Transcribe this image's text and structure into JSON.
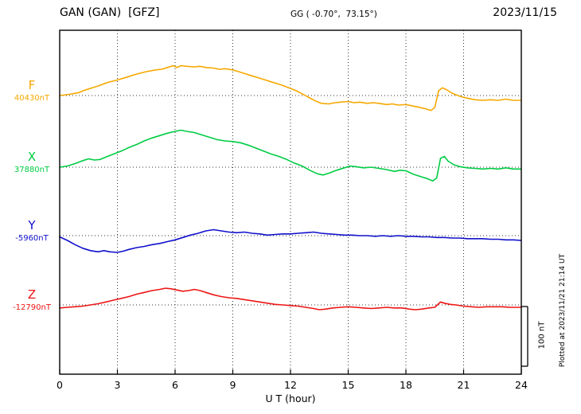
{
  "header": {
    "title": "GAN (GAN)  [GFZ]",
    "coords": "GG ( -0.70°,  73.15°)",
    "date": "2023/11/15"
  },
  "footer_note": "Plotted at 2023/11/21 21:14 UT",
  "scale_bar": {
    "label": "100 nT",
    "value_nT": 100
  },
  "xaxis": {
    "label": "U T (hour)",
    "min": 0,
    "max": 24,
    "ticks": [
      0,
      3,
      6,
      9,
      12,
      15,
      18,
      21,
      24
    ]
  },
  "chart_data": {
    "type": "line",
    "title": "GAN (GAN) [GFZ] magnetogram 2023/11/15",
    "xlabel": "U T (hour)",
    "x_range": [
      0,
      24
    ],
    "x_unit": "hour UT",
    "y_unit": "nT offset from component baseline",
    "grid": {
      "vertical_dotted_every_hours": 3,
      "horizontal_dotted_at_baselines": true
    },
    "scale_bar_nT": 100,
    "legend_position": "left-margin baseline labels",
    "series": [
      {
        "name": "F",
        "color": "#f5a800",
        "baseline_label": "40430nT",
        "baseline_nT": 40430,
        "points": [
          [
            0,
            0
          ],
          [
            0.5,
            2
          ],
          [
            1,
            5
          ],
          [
            1.3,
            9
          ],
          [
            1.6,
            12
          ],
          [
            2,
            16
          ],
          [
            2.5,
            22
          ],
          [
            3,
            26
          ],
          [
            3.5,
            31
          ],
          [
            4,
            36
          ],
          [
            4.5,
            40
          ],
          [
            5,
            43
          ],
          [
            5.3,
            44
          ],
          [
            5.6,
            47
          ],
          [
            5.9,
            50
          ],
          [
            6.1,
            47
          ],
          [
            6.3,
            50
          ],
          [
            6.6,
            49
          ],
          [
            7,
            48
          ],
          [
            7.3,
            49
          ],
          [
            7.6,
            47
          ],
          [
            8,
            46
          ],
          [
            8.3,
            44
          ],
          [
            8.6,
            45
          ],
          [
            9,
            43
          ],
          [
            9.3,
            40
          ],
          [
            9.6,
            37
          ],
          [
            10,
            33
          ],
          [
            10.5,
            28
          ],
          [
            11,
            23
          ],
          [
            11.5,
            18
          ],
          [
            12,
            12
          ],
          [
            12.3,
            8
          ],
          [
            12.6,
            3
          ],
          [
            13,
            -4
          ],
          [
            13.3,
            -9
          ],
          [
            13.6,
            -13
          ],
          [
            14,
            -14
          ],
          [
            14.3,
            -12
          ],
          [
            14.6,
            -11
          ],
          [
            15,
            -10
          ],
          [
            15.3,
            -12
          ],
          [
            15.6,
            -11
          ],
          [
            16,
            -13
          ],
          [
            16.3,
            -12
          ],
          [
            16.6,
            -13
          ],
          [
            17,
            -15
          ],
          [
            17.3,
            -14
          ],
          [
            17.6,
            -16
          ],
          [
            18,
            -15
          ],
          [
            18.3,
            -17
          ],
          [
            18.6,
            -19
          ],
          [
            19,
            -22
          ],
          [
            19.3,
            -25
          ],
          [
            19.5,
            -20
          ],
          [
            19.7,
            8
          ],
          [
            19.9,
            13
          ],
          [
            20.1,
            10
          ],
          [
            20.4,
            4
          ],
          [
            20.7,
            0
          ],
          [
            21,
            -3
          ],
          [
            21.3,
            -5
          ],
          [
            21.6,
            -7
          ],
          [
            22,
            -8
          ],
          [
            22.4,
            -7
          ],
          [
            22.8,
            -8
          ],
          [
            23.2,
            -6
          ],
          [
            23.6,
            -8
          ],
          [
            24,
            -8
          ]
        ]
      },
      {
        "name": "X",
        "color": "#00cc44",
        "baseline_label": "37880nT",
        "baseline_nT": 37880,
        "points": [
          [
            0,
            0
          ],
          [
            0.4,
            2
          ],
          [
            0.8,
            6
          ],
          [
            1.2,
            11
          ],
          [
            1.5,
            14
          ],
          [
            1.8,
            12
          ],
          [
            2.1,
            13
          ],
          [
            2.4,
            17
          ],
          [
            2.8,
            22
          ],
          [
            3.2,
            27
          ],
          [
            3.6,
            33
          ],
          [
            4,
            38
          ],
          [
            4.4,
            44
          ],
          [
            4.8,
            49
          ],
          [
            5.2,
            53
          ],
          [
            5.6,
            57
          ],
          [
            6,
            60
          ],
          [
            6.3,
            62
          ],
          [
            6.6,
            60
          ],
          [
            7,
            58
          ],
          [
            7.4,
            54
          ],
          [
            7.8,
            50
          ],
          [
            8.2,
            46
          ],
          [
            8.6,
            44
          ],
          [
            9,
            43
          ],
          [
            9.4,
            41
          ],
          [
            9.8,
            37
          ],
          [
            10.2,
            32
          ],
          [
            10.6,
            27
          ],
          [
            11,
            22
          ],
          [
            11.4,
            18
          ],
          [
            11.8,
            13
          ],
          [
            12.2,
            7
          ],
          [
            12.6,
            2
          ],
          [
            13,
            -5
          ],
          [
            13.4,
            -11
          ],
          [
            13.7,
            -13
          ],
          [
            14,
            -10
          ],
          [
            14.4,
            -5
          ],
          [
            14.8,
            -1
          ],
          [
            15.1,
            2
          ],
          [
            15.4,
            1
          ],
          [
            15.8,
            -1
          ],
          [
            16.2,
            0
          ],
          [
            16.6,
            -2
          ],
          [
            17,
            -4
          ],
          [
            17.4,
            -7
          ],
          [
            17.7,
            -5
          ],
          [
            18,
            -6
          ],
          [
            18.4,
            -12
          ],
          [
            18.8,
            -16
          ],
          [
            19.1,
            -19
          ],
          [
            19.4,
            -23
          ],
          [
            19.6,
            -18
          ],
          [
            19.8,
            15
          ],
          [
            20,
            18
          ],
          [
            20.2,
            10
          ],
          [
            20.5,
            4
          ],
          [
            20.8,
            1
          ],
          [
            21.2,
            -1
          ],
          [
            21.6,
            -2
          ],
          [
            22,
            -3
          ],
          [
            22.4,
            -2
          ],
          [
            22.8,
            -3
          ],
          [
            23.2,
            -1
          ],
          [
            23.6,
            -3
          ],
          [
            24,
            -3
          ]
        ]
      },
      {
        "name": "Y",
        "color": "#1010cc",
        "baseline_label": "-5960nT",
        "baseline_nT": -5960,
        "points": [
          [
            0,
            -2
          ],
          [
            0.4,
            -8
          ],
          [
            0.8,
            -15
          ],
          [
            1.2,
            -21
          ],
          [
            1.6,
            -25
          ],
          [
            2,
            -27
          ],
          [
            2.3,
            -25
          ],
          [
            2.6,
            -27
          ],
          [
            3,
            -28
          ],
          [
            3.3,
            -26
          ],
          [
            3.6,
            -23
          ],
          [
            4,
            -20
          ],
          [
            4.4,
            -18
          ],
          [
            4.8,
            -15
          ],
          [
            5.2,
            -13
          ],
          [
            5.6,
            -10
          ],
          [
            6,
            -7
          ],
          [
            6.4,
            -3
          ],
          [
            6.8,
            1
          ],
          [
            7.2,
            4
          ],
          [
            7.6,
            8
          ],
          [
            8,
            10
          ],
          [
            8.4,
            8
          ],
          [
            8.8,
            6
          ],
          [
            9.2,
            5
          ],
          [
            9.6,
            6
          ],
          [
            10,
            4
          ],
          [
            10.4,
            3
          ],
          [
            10.8,
            1
          ],
          [
            11.2,
            2
          ],
          [
            11.6,
            3
          ],
          [
            12,
            3
          ],
          [
            12.4,
            4
          ],
          [
            12.8,
            5
          ],
          [
            13.2,
            6
          ],
          [
            13.6,
            4
          ],
          [
            14,
            3
          ],
          [
            14.4,
            2
          ],
          [
            14.8,
            1
          ],
          [
            15.2,
            1
          ],
          [
            15.6,
            0
          ],
          [
            16,
            0
          ],
          [
            16.4,
            -1
          ],
          [
            16.8,
            0
          ],
          [
            17.2,
            -1
          ],
          [
            17.6,
            0
          ],
          [
            18,
            -1
          ],
          [
            18.4,
            -1
          ],
          [
            18.8,
            -2
          ],
          [
            19.2,
            -2
          ],
          [
            19.6,
            -3
          ],
          [
            20,
            -3
          ],
          [
            20.4,
            -4
          ],
          [
            20.8,
            -4
          ],
          [
            21.2,
            -5
          ],
          [
            21.6,
            -5
          ],
          [
            22,
            -5
          ],
          [
            22.4,
            -6
          ],
          [
            22.8,
            -6
          ],
          [
            23.2,
            -7
          ],
          [
            23.6,
            -7
          ],
          [
            24,
            -8
          ]
        ]
      },
      {
        "name": "Z",
        "color": "#ee1515",
        "baseline_label": "-12790nT",
        "baseline_nT": -12790,
        "points": [
          [
            0,
            -5
          ],
          [
            0.4,
            -4
          ],
          [
            0.8,
            -3
          ],
          [
            1.2,
            -2
          ],
          [
            1.6,
            0
          ],
          [
            2,
            2
          ],
          [
            2.4,
            5
          ],
          [
            2.8,
            8
          ],
          [
            3.2,
            11
          ],
          [
            3.6,
            14
          ],
          [
            4,
            18
          ],
          [
            4.4,
            21
          ],
          [
            4.8,
            24
          ],
          [
            5.2,
            26
          ],
          [
            5.5,
            28
          ],
          [
            5.8,
            27
          ],
          [
            6.1,
            25
          ],
          [
            6.4,
            23
          ],
          [
            6.7,
            24
          ],
          [
            7,
            26
          ],
          [
            7.3,
            24
          ],
          [
            7.6,
            21
          ],
          [
            8,
            17
          ],
          [
            8.4,
            14
          ],
          [
            8.8,
            12
          ],
          [
            9.2,
            11
          ],
          [
            9.6,
            9
          ],
          [
            10,
            7
          ],
          [
            10.4,
            5
          ],
          [
            10.8,
            3
          ],
          [
            11.2,
            1
          ],
          [
            11.6,
            0
          ],
          [
            12,
            -1
          ],
          [
            12.4,
            -2
          ],
          [
            12.8,
            -4
          ],
          [
            13.2,
            -6
          ],
          [
            13.5,
            -8
          ],
          [
            13.8,
            -7
          ],
          [
            14.2,
            -5
          ],
          [
            14.6,
            -4
          ],
          [
            15,
            -3
          ],
          [
            15.4,
            -4
          ],
          [
            15.8,
            -5
          ],
          [
            16.2,
            -6
          ],
          [
            16.6,
            -5
          ],
          [
            17,
            -4
          ],
          [
            17.4,
            -5
          ],
          [
            17.8,
            -5
          ],
          [
            18.2,
            -7
          ],
          [
            18.5,
            -8
          ],
          [
            18.8,
            -7
          ],
          [
            19.2,
            -5
          ],
          [
            19.5,
            -4
          ],
          [
            19.8,
            5
          ],
          [
            20,
            3
          ],
          [
            20.3,
            1
          ],
          [
            20.6,
            0
          ],
          [
            21,
            -2
          ],
          [
            21.4,
            -3
          ],
          [
            21.8,
            -4
          ],
          [
            22.2,
            -3
          ],
          [
            22.6,
            -3
          ],
          [
            23,
            -3
          ],
          [
            23.4,
            -4
          ],
          [
            23.8,
            -4
          ],
          [
            24,
            -4
          ]
        ]
      }
    ]
  }
}
